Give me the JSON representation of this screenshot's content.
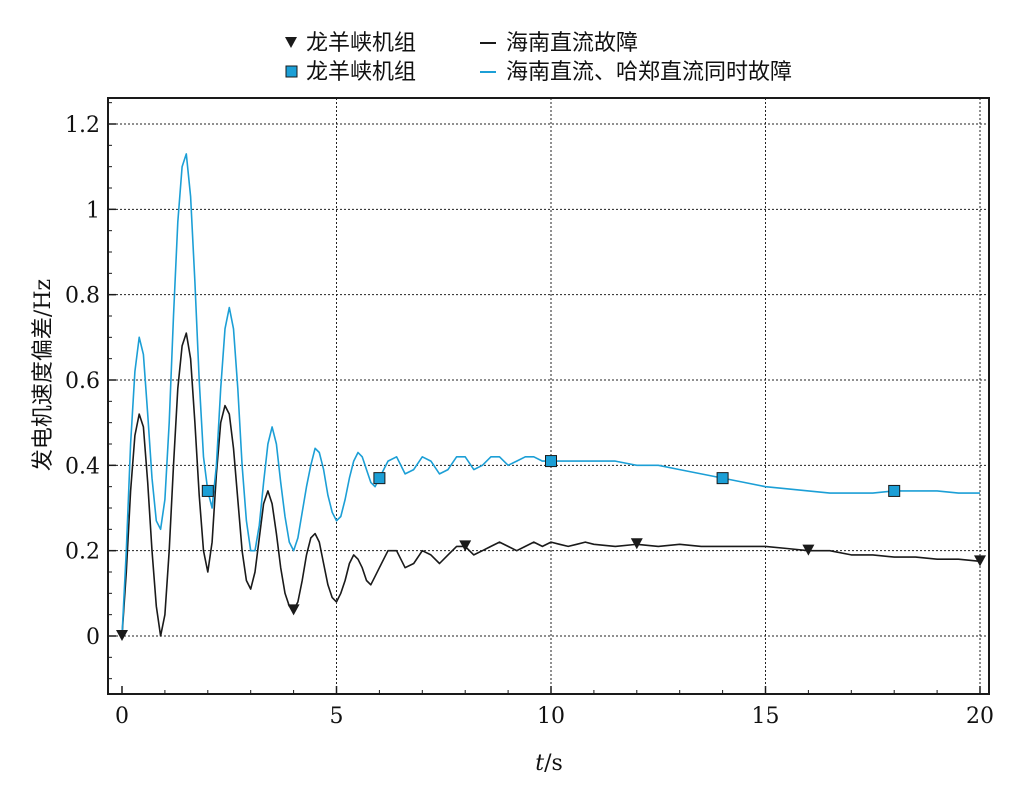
{
  "chart_data": {
    "type": "line",
    "xlabel_italic": "t",
    "xlabel_unit": "/s",
    "ylabel": "发电机速度偏差/Hz",
    "xlim": [
      0,
      20
    ],
    "ylim": [
      -0.13,
      1.26
    ],
    "x_ticks": [
      0,
      5,
      10,
      15,
      20
    ],
    "x_tick_labels": [
      "0",
      "5",
      "10",
      "15",
      "20"
    ],
    "y_ticks": [
      0,
      0.2,
      0.4,
      0.6,
      0.8,
      1.0,
      1.2
    ],
    "y_tick_labels": [
      "0",
      "0.2",
      "0.4",
      "0.6",
      "0.8",
      "1",
      "1.2"
    ],
    "grid": true,
    "legend_position": "top-center",
    "legend": [
      {
        "marker_label": "龙羊峡机组",
        "line_label": "海南直流故障",
        "marker": "triangle-down",
        "color": "#1a1a1a"
      },
      {
        "marker_label": "龙羊峡机组",
        "line_label": "海南直流、哈郑直流同时故障",
        "marker": "square",
        "color": "#1c9fd6"
      }
    ],
    "series": [
      {
        "name": "海南直流故障",
        "color": "#1a1a1a",
        "marker": "triangle-down",
        "markers_x": [
          0,
          4,
          8,
          12,
          16,
          20
        ],
        "x": [
          0,
          0.1,
          0.2,
          0.3,
          0.4,
          0.5,
          0.6,
          0.7,
          0.8,
          0.9,
          1.0,
          1.1,
          1.2,
          1.3,
          1.4,
          1.5,
          1.6,
          1.7,
          1.8,
          1.9,
          2.0,
          2.1,
          2.2,
          2.3,
          2.4,
          2.5,
          2.6,
          2.7,
          2.8,
          2.9,
          3.0,
          3.1,
          3.2,
          3.3,
          3.4,
          3.5,
          3.6,
          3.7,
          3.8,
          3.9,
          4.0,
          4.1,
          4.2,
          4.3,
          4.4,
          4.5,
          4.6,
          4.7,
          4.8,
          4.9,
          5.0,
          5.1,
          5.2,
          5.3,
          5.4,
          5.5,
          5.6,
          5.7,
          5.8,
          5.9,
          6.0,
          6.2,
          6.4,
          6.6,
          6.8,
          7.0,
          7.2,
          7.4,
          7.6,
          7.8,
          8.0,
          8.2,
          8.4,
          8.6,
          8.8,
          9.0,
          9.2,
          9.4,
          9.6,
          9.8,
          10.0,
          10.2,
          10.4,
          10.6,
          10.8,
          11.0,
          11.5,
          12.0,
          12.5,
          13.0,
          13.5,
          14.0,
          14.5,
          15.0,
          15.5,
          16.0,
          16.5,
          17.0,
          17.5,
          18.0,
          18.5,
          19.0,
          19.5,
          20.0
        ],
        "y": [
          0.0,
          0.15,
          0.34,
          0.47,
          0.52,
          0.49,
          0.36,
          0.2,
          0.07,
          0.0,
          0.05,
          0.2,
          0.4,
          0.58,
          0.68,
          0.71,
          0.65,
          0.5,
          0.33,
          0.2,
          0.15,
          0.22,
          0.38,
          0.5,
          0.54,
          0.52,
          0.44,
          0.32,
          0.2,
          0.13,
          0.11,
          0.15,
          0.23,
          0.31,
          0.34,
          0.31,
          0.24,
          0.16,
          0.1,
          0.07,
          0.06,
          0.08,
          0.13,
          0.19,
          0.23,
          0.24,
          0.22,
          0.17,
          0.12,
          0.09,
          0.08,
          0.1,
          0.13,
          0.17,
          0.19,
          0.18,
          0.16,
          0.13,
          0.12,
          0.14,
          0.16,
          0.2,
          0.2,
          0.16,
          0.17,
          0.2,
          0.19,
          0.17,
          0.19,
          0.21,
          0.21,
          0.19,
          0.2,
          0.21,
          0.22,
          0.21,
          0.2,
          0.21,
          0.22,
          0.21,
          0.22,
          0.215,
          0.21,
          0.215,
          0.22,
          0.215,
          0.21,
          0.215,
          0.21,
          0.215,
          0.21,
          0.21,
          0.21,
          0.21,
          0.205,
          0.2,
          0.2,
          0.19,
          0.19,
          0.185,
          0.185,
          0.18,
          0.18,
          0.175
        ]
      },
      {
        "name": "海南直流、哈郑直流同时故障",
        "color": "#1c9fd6",
        "marker": "square",
        "markers_x": [
          2,
          6,
          10,
          14,
          18
        ],
        "x": [
          0,
          0.1,
          0.2,
          0.3,
          0.4,
          0.5,
          0.6,
          0.7,
          0.8,
          0.9,
          1.0,
          1.1,
          1.2,
          1.3,
          1.4,
          1.5,
          1.6,
          1.7,
          1.8,
          1.9,
          2.0,
          2.1,
          2.2,
          2.3,
          2.4,
          2.5,
          2.6,
          2.7,
          2.8,
          2.9,
          3.0,
          3.1,
          3.2,
          3.3,
          3.4,
          3.5,
          3.6,
          3.7,
          3.8,
          3.9,
          4.0,
          4.1,
          4.2,
          4.3,
          4.4,
          4.5,
          4.6,
          4.7,
          4.8,
          4.9,
          5.0,
          5.1,
          5.2,
          5.3,
          5.4,
          5.5,
          5.6,
          5.7,
          5.8,
          5.9,
          6.0,
          6.2,
          6.4,
          6.6,
          6.8,
          7.0,
          7.2,
          7.4,
          7.6,
          7.8,
          8.0,
          8.2,
          8.4,
          8.6,
          8.8,
          9.0,
          9.2,
          9.4,
          9.6,
          9.8,
          10.0,
          10.5,
          11.0,
          11.5,
          12.0,
          12.5,
          13.0,
          13.5,
          14.0,
          14.5,
          15.0,
          15.5,
          16.0,
          16.5,
          17.0,
          17.5,
          18.0,
          18.5,
          19.0,
          19.5,
          20.0
        ],
        "y": [
          0.0,
          0.2,
          0.45,
          0.62,
          0.7,
          0.66,
          0.52,
          0.37,
          0.27,
          0.25,
          0.32,
          0.5,
          0.75,
          0.97,
          1.1,
          1.13,
          1.03,
          0.83,
          0.6,
          0.42,
          0.34,
          0.3,
          0.4,
          0.58,
          0.72,
          0.77,
          0.72,
          0.58,
          0.4,
          0.27,
          0.2,
          0.2,
          0.26,
          0.36,
          0.45,
          0.49,
          0.45,
          0.36,
          0.28,
          0.22,
          0.2,
          0.23,
          0.29,
          0.35,
          0.4,
          0.44,
          0.43,
          0.39,
          0.33,
          0.29,
          0.27,
          0.28,
          0.32,
          0.37,
          0.41,
          0.43,
          0.42,
          0.39,
          0.36,
          0.35,
          0.37,
          0.41,
          0.42,
          0.38,
          0.39,
          0.42,
          0.41,
          0.38,
          0.39,
          0.42,
          0.42,
          0.39,
          0.4,
          0.42,
          0.42,
          0.4,
          0.41,
          0.42,
          0.42,
          0.41,
          0.41,
          0.41,
          0.41,
          0.41,
          0.4,
          0.4,
          0.39,
          0.38,
          0.37,
          0.36,
          0.35,
          0.345,
          0.34,
          0.335,
          0.335,
          0.335,
          0.34,
          0.34,
          0.34,
          0.335,
          0.335
        ]
      }
    ]
  }
}
